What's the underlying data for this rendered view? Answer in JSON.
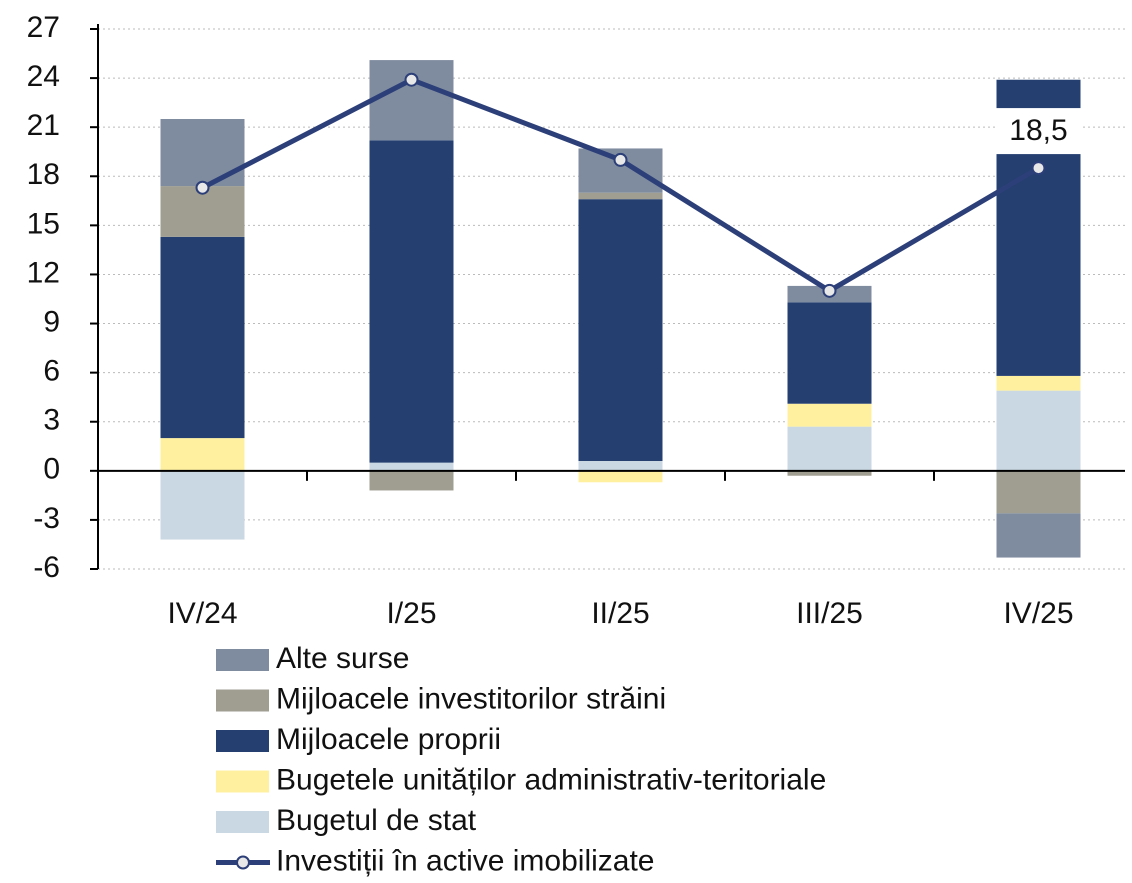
{
  "chart_data": {
    "type": "bar",
    "categories": [
      "IV/24",
      "I/25",
      "II/25",
      "III/25",
      "IV/25"
    ],
    "series": [
      {
        "name": "Alte surse",
        "color": "#7f8ca0",
        "values": [
          4.1,
          4.9,
          2.7,
          1.0,
          -2.7
        ]
      },
      {
        "name": "Mijloacele investitorilor străini",
        "color": "#a09e90",
        "values": [
          3.1,
          -1.2,
          0.4,
          -0.3,
          -2.6
        ]
      },
      {
        "name": "Mijloacele proprii",
        "color": "#243f70",
        "values": [
          12.3,
          19.7,
          16.0,
          6.2,
          18.1
        ]
      },
      {
        "name": "Bugetele unităților administrativ-teritoriale",
        "color": "#fff0a0",
        "values": [
          2.0,
          0,
          -0.7,
          1.4,
          0.9
        ]
      },
      {
        "name": "Bugetul de stat",
        "color": "#c9d8e3",
        "values": [
          -4.2,
          0.5,
          0.6,
          2.7,
          4.9
        ]
      },
      {
        "name": "Investiții în active imobilizate",
        "type": "line",
        "color": "#2c3f78",
        "values": [
          17.3,
          23.9,
          19.0,
          11.0,
          18.5
        ],
        "value_labels": [
          null,
          null,
          null,
          null,
          "18,5"
        ]
      }
    ],
    "ylim": [
      -6,
      27
    ],
    "yticks": [
      -6,
      -3,
      0,
      3,
      6,
      9,
      12,
      15,
      18,
      21,
      24,
      27
    ],
    "grid": true
  }
}
